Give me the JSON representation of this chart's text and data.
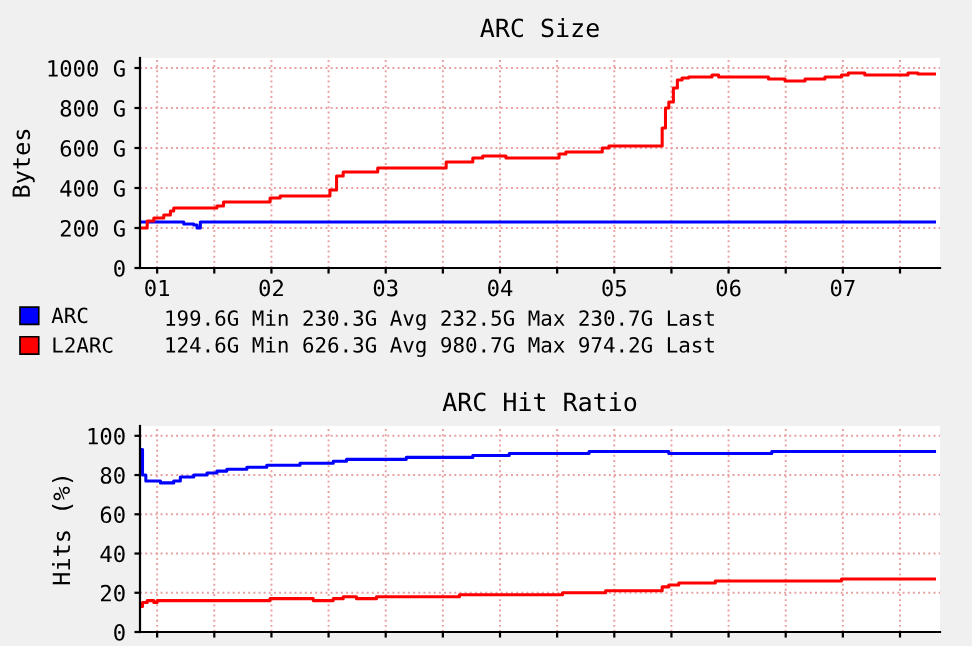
{
  "chart_data": [
    {
      "type": "step",
      "title": "ARC Size",
      "ylabel": "Bytes",
      "xlim": [
        1.35,
        8.35
      ],
      "ylim": [
        0,
        1050
      ],
      "xticks": [
        {
          "value": 1.5,
          "label": "01"
        },
        {
          "value": 2,
          "label": null
        },
        {
          "value": 2.5,
          "label": "02"
        },
        {
          "value": 3,
          "label": null
        },
        {
          "value": 3.5,
          "label": "03"
        },
        {
          "value": 4,
          "label": null
        },
        {
          "value": 4.5,
          "label": "04"
        },
        {
          "value": 5,
          "label": null
        },
        {
          "value": 5.5,
          "label": "05"
        },
        {
          "value": 6,
          "label": null
        },
        {
          "value": 6.5,
          "label": "06"
        },
        {
          "value": 7,
          "label": null
        },
        {
          "value": 7.5,
          "label": "07"
        },
        {
          "value": 8,
          "label": null
        }
      ],
      "yticks": [
        {
          "value": 0,
          "label": "0"
        },
        {
          "value": 200,
          "label": "200 G"
        },
        {
          "value": 400,
          "label": "400 G"
        },
        {
          "value": 600,
          "label": "600 G"
        },
        {
          "value": 800,
          "label": "800 G"
        },
        {
          "value": 1000,
          "label": "1000 G"
        }
      ],
      "grid": true,
      "legend": "bottom",
      "annotations": [
        "199.6G Min 230.3G Avg 232.5G Max 230.7G Last",
        "124.6G Min 626.3G Avg 980.7G Max 974.2G Last"
      ],
      "series": [
        {
          "name": "ARC",
          "color": "#0000ff",
          "x": [
            1.355,
            1.703,
            1.733,
            1.82,
            1.849,
            1.878,
            8.302
          ],
          "values": [
            230,
            230,
            220,
            215,
            200,
            230,
            230
          ]
        },
        {
          "name": "L2ARC",
          "color": "#ff0000",
          "x": [
            1.355,
            1.413,
            1.471,
            1.558,
            1.616,
            1.645,
            2.023,
            2.081,
            2.488,
            2.576,
            3.012,
            3.07,
            3.128,
            3.43,
            4.029,
            4.262,
            4.349,
            4.552,
            5.017,
            5.076,
            5.395,
            5.453,
            5.919,
            5.948,
            5.977,
            6.017,
            6.052,
            6.093,
            6.151,
            6.355,
            6.413,
            6.849,
            6.994,
            7.169,
            7.343,
            7.488,
            7.547,
            7.692,
            8.07,
            8.157,
            8.302
          ],
          "values": [
            200,
            235,
            250,
            265,
            285,
            300,
            310,
            330,
            350,
            360,
            390,
            460,
            480,
            500,
            530,
            550,
            560,
            550,
            570,
            580,
            600,
            610,
            700,
            800,
            830,
            900,
            940,
            950,
            955,
            965,
            955,
            945,
            935,
            945,
            955,
            965,
            975,
            965,
            975,
            970,
            970
          ]
        }
      ]
    },
    {
      "type": "step",
      "title": "ARC Hit Ratio",
      "ylabel": "Hits (%)",
      "xlim": [
        1.35,
        8.35
      ],
      "ylim": [
        0,
        105
      ],
      "tick_labels": "y",
      "xticks": [
        {
          "value": 1.5,
          "label": null
        },
        {
          "value": 2,
          "label": null
        },
        {
          "value": 2.5,
          "label": null
        },
        {
          "value": 3,
          "label": null
        },
        {
          "value": 3.5,
          "label": null
        },
        {
          "value": 4,
          "label": null
        },
        {
          "value": 4.5,
          "label": null
        },
        {
          "value": 5,
          "label": null
        },
        {
          "value": 5.5,
          "label": null
        },
        {
          "value": 6,
          "label": null
        },
        {
          "value": 6.5,
          "label": null
        },
        {
          "value": 7,
          "label": null
        },
        {
          "value": 7.5,
          "label": null
        },
        {
          "value": 8,
          "label": null
        }
      ],
      "yticks": [
        0,
        20,
        40,
        60,
        80,
        100
      ],
      "grid": true,
      "series": [
        {
          "color": "#0000ff",
          "x": [
            1.355,
            1.372,
            1.401,
            1.529,
            1.645,
            1.703,
            1.82,
            1.936,
            2.023,
            2.11,
            2.285,
            2.459,
            2.75,
            3.041,
            3.157,
            3.68,
            4.262,
            4.581,
            5.279,
            5.977,
            6.878,
            8.302
          ],
          "values": [
            93,
            80,
            77,
            76,
            77,
            79,
            80,
            81,
            82,
            83,
            84,
            85,
            86,
            87,
            88,
            89,
            90,
            91,
            92,
            91,
            92,
            92
          ]
        },
        {
          "color": "#ff0000",
          "x": [
            1.355,
            1.372,
            1.413,
            1.471,
            1.5,
            2.488,
            2.866,
            3.041,
            3.128,
            3.244,
            3.419,
            4.145,
            5.047,
            5.424,
            5.919,
            5.977,
            6.064,
            6.384,
            7.488,
            8.302
          ],
          "values": [
            13,
            15,
            16,
            15,
            16,
            17,
            16,
            17,
            18,
            17,
            18,
            19,
            20,
            21,
            23,
            24,
            25,
            26,
            27,
            27
          ]
        }
      ]
    }
  ]
}
